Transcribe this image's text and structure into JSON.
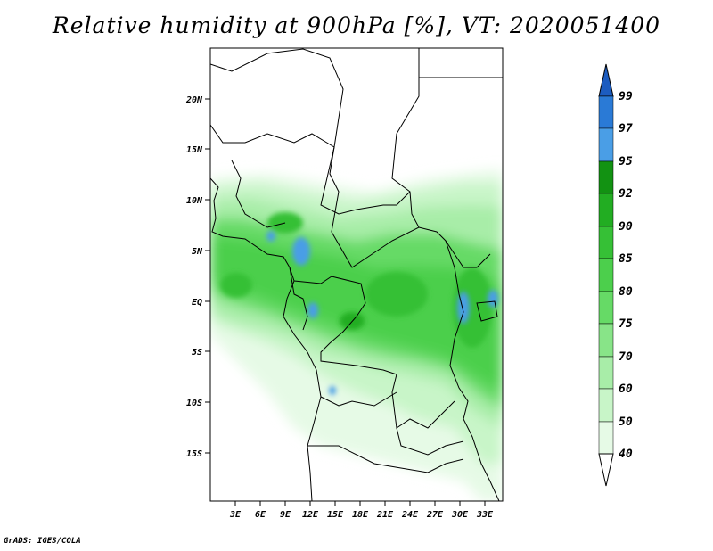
{
  "title": "Relative humidity at 900hPa [%], VT: 2020051400",
  "credit": "GrADS: IGES/COLA",
  "map": {
    "lat_ticks": [
      "20N",
      "15N",
      "10N",
      "5N",
      "EQ",
      "5S",
      "10S",
      "15S"
    ],
    "lon_ticks": [
      "3E",
      "6E",
      "9E",
      "12E",
      "15E",
      "18E",
      "21E",
      "24E",
      "27E",
      "30E",
      "33E"
    ]
  },
  "colorbar": {
    "levels": [
      "40",
      "50",
      "60",
      "70",
      "75",
      "80",
      "85",
      "90",
      "92",
      "95",
      "97",
      "99"
    ],
    "colors": [
      "#ffffff",
      "#e6fae6",
      "#c8f5c8",
      "#a8eda8",
      "#88e488",
      "#66da66",
      "#4ccf4c",
      "#36c036",
      "#22ad22",
      "#129212",
      "#4a9ee6",
      "#2a7ad6",
      "#1c5cc0"
    ]
  }
}
